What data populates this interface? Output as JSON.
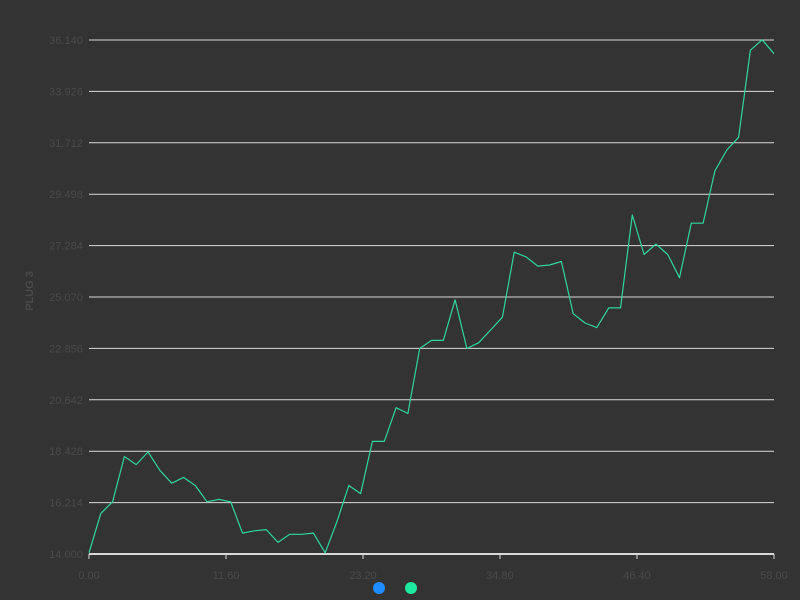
{
  "colors": {
    "background": "#333333",
    "grid": "#d9d9d9",
    "axis_text": "#4a4a4a",
    "series_line": "#2fd6a0",
    "legend_dot_1": "#1e8cff",
    "legend_dot_2": "#1de9a0"
  },
  "chart_data": {
    "type": "line",
    "title": "",
    "xlabel": "",
    "ylabel": "PLUG 3",
    "xlim": [
      0,
      58
    ],
    "ylim": [
      14.0,
      36.14
    ],
    "x_ticks": [
      "0.00",
      "11.60",
      "23.20",
      "34.80",
      "46.40",
      "58.00"
    ],
    "y_ticks": [
      "14.000",
      "16.214",
      "18.428",
      "20.642",
      "22.856",
      "25.070",
      "27.284",
      "29.498",
      "31.712",
      "33.926",
      "36.140"
    ],
    "grid": true,
    "legend_position": "bottom-center",
    "legend_markers": [
      {
        "color": "#1e8cff"
      },
      {
        "color": "#1de9a0"
      }
    ],
    "series": [
      {
        "color": "#2fd6a0",
        "x": [
          0,
          1,
          2,
          3,
          4,
          5,
          6,
          7,
          8,
          9,
          10,
          11,
          12,
          13,
          14,
          15,
          16,
          17,
          18,
          19,
          20,
          21,
          22,
          23,
          24,
          25,
          26,
          27,
          28,
          29,
          30,
          31,
          32,
          33,
          34,
          35,
          36,
          37,
          38,
          39,
          40,
          41,
          42,
          43,
          44,
          45,
          46,
          47,
          48,
          49,
          50,
          51,
          52,
          53,
          54,
          55,
          56,
          57,
          58
        ],
        "values": [
          14.05,
          15.75,
          16.25,
          18.2,
          17.85,
          18.4,
          17.6,
          17.05,
          17.3,
          16.95,
          16.25,
          16.35,
          16.25,
          14.9,
          15.0,
          15.05,
          14.5,
          14.85,
          14.85,
          14.9,
          14.05,
          15.4,
          16.95,
          16.6,
          18.85,
          18.85,
          20.3,
          20.05,
          22.85,
          23.2,
          23.2,
          24.95,
          22.85,
          23.1,
          23.65,
          24.2,
          27.0,
          26.8,
          26.4,
          26.45,
          26.6,
          24.35,
          23.95,
          23.75,
          24.6,
          24.6,
          28.6,
          26.9,
          27.35,
          26.9,
          25.9,
          28.25,
          28.25,
          30.5,
          31.4,
          31.95,
          35.7,
          36.15,
          35.55
        ]
      }
    ]
  }
}
